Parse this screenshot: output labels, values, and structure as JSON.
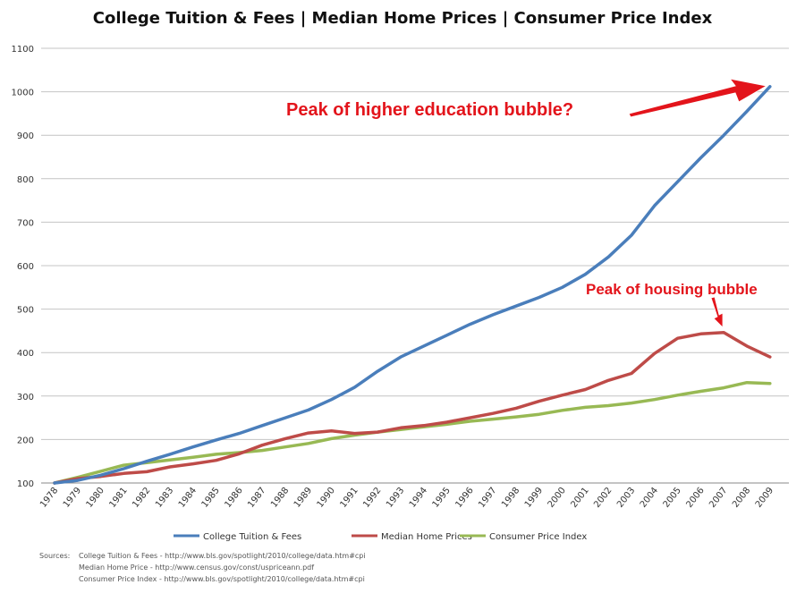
{
  "chart_data": {
    "type": "line",
    "title": "College Tuition & Fees | Median Home Prices | Consumer Price Index",
    "xlabel": "",
    "ylabel": "",
    "ylim": [
      100,
      1100
    ],
    "yticks": [
      100,
      200,
      300,
      400,
      500,
      600,
      700,
      800,
      900,
      1000,
      1100
    ],
    "categories": [
      "1978",
      "1979",
      "1980",
      "1981",
      "1982",
      "1983",
      "1984",
      "1985",
      "1986",
      "1987",
      "1988",
      "1989",
      "1990",
      "1991",
      "1992",
      "1993",
      "1994",
      "1995",
      "1996",
      "1997",
      "1998",
      "1999",
      "2000",
      "2001",
      "2002",
      "2003",
      "2004",
      "2005",
      "2006",
      "2007",
      "2008",
      "2009"
    ],
    "grid": true,
    "legend_position": "bottom",
    "series": [
      {
        "name": "College Tuition & Fees",
        "color": "#4a7ebb",
        "values": [
          100,
          106,
          118,
          133,
          150,
          166,
          183,
          199,
          214,
          232,
          250,
          268,
          292,
          320,
          357,
          390,
          415,
          440,
          465,
          487,
          507,
          527,
          550,
          580,
          620,
          670,
          738,
          793,
          848,
          900,
          955,
          1012
        ]
      },
      {
        "name": "Median Home Prices",
        "color": "#be4b48",
        "values": [
          100,
          110,
          115,
          122,
          126,
          137,
          144,
          152,
          167,
          187,
          202,
          215,
          220,
          214,
          217,
          227,
          232,
          240,
          250,
          260,
          272,
          288,
          302,
          315,
          336,
          352,
          398,
          433,
          443,
          446,
          415,
          390
        ]
      },
      {
        "name": "Consumer Price Index",
        "color": "#98b954",
        "values": [
          100,
          113,
          127,
          141,
          147,
          153,
          159,
          166,
          170,
          175,
          183,
          191,
          202,
          210,
          217,
          223,
          229,
          235,
          242,
          247,
          252,
          258,
          267,
          274,
          278,
          284,
          292,
          302,
          311,
          319,
          331,
          329
        ]
      }
    ],
    "annotations": [
      {
        "text": "Peak of higher education bubble?",
        "color": "#e3141b",
        "points_to": "College Tuition & Fees 2009"
      },
      {
        "text": "Peak of housing bubble",
        "color": "#e3141b",
        "points_to": "Median Home Prices 2007"
      }
    ]
  },
  "sources": {
    "label": "Sources:",
    "lines": [
      "College Tuition & Fees - http://www.bls.gov/spotlight/2010/college/data.htm#cpi",
      "Median Home Price - http://www.census.gov/const/uspriceann.pdf",
      "Consumer Price Index - http://www.bls.gov/spotlight/2010/college/data.htm#cpi"
    ]
  }
}
